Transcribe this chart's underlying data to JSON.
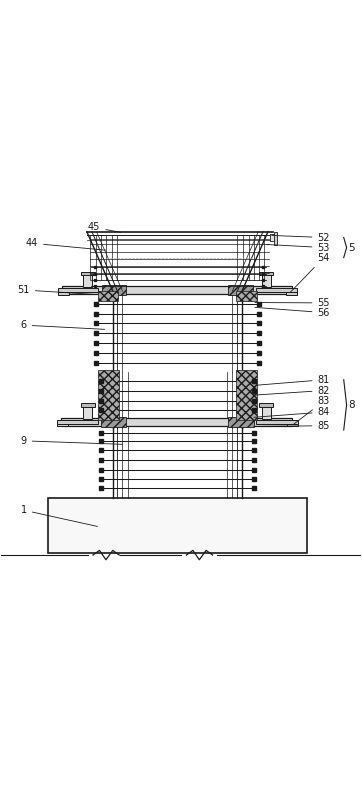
{
  "bg_color": "#ffffff",
  "line_color": "#3a3a3a",
  "dark_color": "#1a1a1a",
  "gray_color": "#888888",
  "figsize": [
    3.62,
    7.94
  ],
  "dpi": 100
}
